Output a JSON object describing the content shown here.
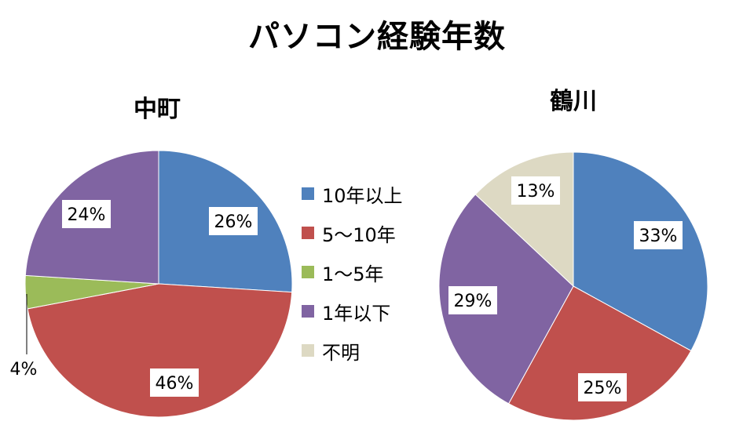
{
  "title": "パソコン経験年数",
  "legend": [
    {
      "label": "10年以上",
      "color": "#4F81BD"
    },
    {
      "label": "5〜10年",
      "color": "#C0504D"
    },
    {
      "label": "1〜5年",
      "color": "#9BBB59"
    },
    {
      "label": "1年以下",
      "color": "#8064A2"
    },
    {
      "label": "不明",
      "color": "#DDD9C3"
    }
  ],
  "chart_data": [
    {
      "type": "pie",
      "title": "中町",
      "categories": [
        "10年以上",
        "5〜10年",
        "1〜5年",
        "1年以下"
      ],
      "values": [
        26,
        46,
        4,
        24
      ],
      "labels": [
        "26%",
        "46%",
        "4%",
        "24%"
      ],
      "colors": [
        "#4F81BD",
        "#C0504D",
        "#9BBB59",
        "#8064A2"
      ],
      "legend": "right"
    },
    {
      "type": "pie",
      "title": "鶴川",
      "categories": [
        "10年以上",
        "5〜10年",
        "1年以下",
        "不明"
      ],
      "values": [
        33,
        25,
        29,
        13
      ],
      "labels": [
        "33%",
        "25%",
        "29%",
        "13%"
      ],
      "colors": [
        "#4F81BD",
        "#C0504D",
        "#8064A2",
        "#DDD9C3"
      ]
    }
  ]
}
